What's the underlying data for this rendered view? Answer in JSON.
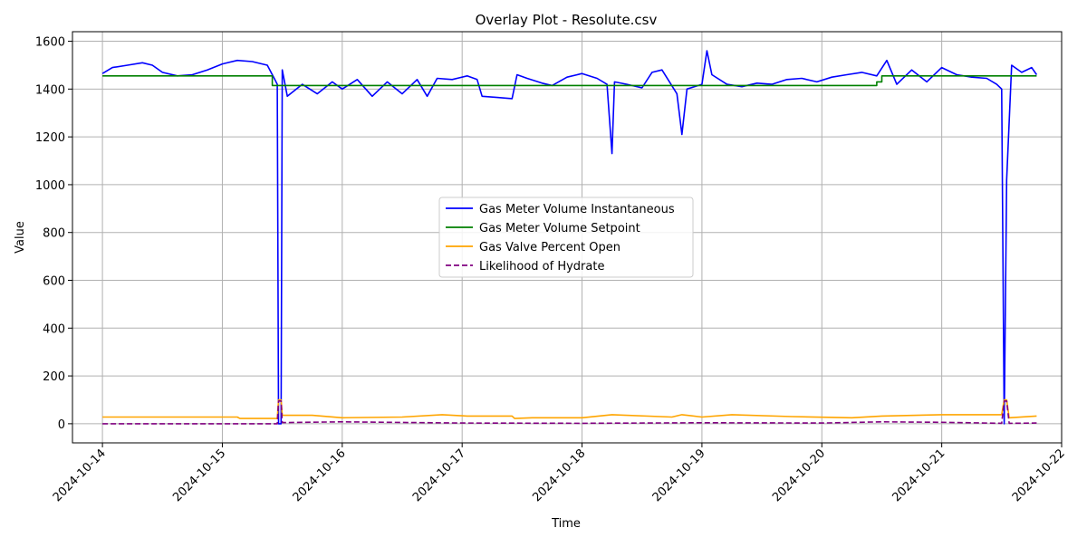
{
  "chart_data": {
    "type": "line",
    "title": "Overlay Plot - Resolute.csv",
    "xlabel": "Time",
    "ylabel": "Value",
    "xlim": [
      "2024-10-13T18:00",
      "2024-10-22T00:00"
    ],
    "ylim": [
      -80,
      1640
    ],
    "x_ticks": [
      "2024-10-14",
      "2024-10-15",
      "2024-10-16",
      "2024-10-17",
      "2024-10-18",
      "2024-10-19",
      "2024-10-20",
      "2024-10-21",
      "2024-10-22"
    ],
    "y_ticks": [
      0,
      200,
      400,
      600,
      800,
      1000,
      1200,
      1400,
      1600
    ],
    "grid": true,
    "legend_position": "center",
    "series": [
      {
        "name": "Gas Meter Volume Instantaneous",
        "color": "#0000ff",
        "dash": "solid",
        "points": [
          [
            "2024-10-14T00:00",
            1465
          ],
          [
            "2024-10-14T02:00",
            1490
          ],
          [
            "2024-10-14T05:00",
            1500
          ],
          [
            "2024-10-14T08:00",
            1510
          ],
          [
            "2024-10-14T10:00",
            1500
          ],
          [
            "2024-10-14T12:00",
            1470
          ],
          [
            "2024-10-14T15:00",
            1455
          ],
          [
            "2024-10-14T18:00",
            1460
          ],
          [
            "2024-10-14T21:00",
            1480
          ],
          [
            "2024-10-15T00:00",
            1505
          ],
          [
            "2024-10-15T03:00",
            1520
          ],
          [
            "2024-10-15T06:00",
            1515
          ],
          [
            "2024-10-15T09:00",
            1500
          ],
          [
            "2024-10-15T10:30",
            1440
          ],
          [
            "2024-10-15T11:00",
            1420
          ],
          [
            "2024-10-15T11:15",
            0
          ],
          [
            "2024-10-15T11:45",
            0
          ],
          [
            "2024-10-15T12:00",
            1480
          ],
          [
            "2024-10-15T13:00",
            1370
          ],
          [
            "2024-10-15T16:00",
            1420
          ],
          [
            "2024-10-15T19:00",
            1380
          ],
          [
            "2024-10-15T22:00",
            1430
          ],
          [
            "2024-10-16T00:00",
            1400
          ],
          [
            "2024-10-16T03:00",
            1440
          ],
          [
            "2024-10-16T06:00",
            1370
          ],
          [
            "2024-10-16T09:00",
            1430
          ],
          [
            "2024-10-16T12:00",
            1380
          ],
          [
            "2024-10-16T15:00",
            1440
          ],
          [
            "2024-10-16T17:00",
            1370
          ],
          [
            "2024-10-16T19:00",
            1445
          ],
          [
            "2024-10-16T22:00",
            1440
          ],
          [
            "2024-10-17T01:00",
            1455
          ],
          [
            "2024-10-17T03:00",
            1440
          ],
          [
            "2024-10-17T04:00",
            1370
          ],
          [
            "2024-10-17T07:00",
            1365
          ],
          [
            "2024-10-17T10:00",
            1360
          ],
          [
            "2024-10-17T11:00",
            1460
          ],
          [
            "2024-10-17T13:00",
            1445
          ],
          [
            "2024-10-17T16:00",
            1425
          ],
          [
            "2024-10-17T18:00",
            1415
          ],
          [
            "2024-10-17T21:00",
            1450
          ],
          [
            "2024-10-18T00:00",
            1465
          ],
          [
            "2024-10-18T03:00",
            1445
          ],
          [
            "2024-10-18T05:00",
            1420
          ],
          [
            "2024-10-18T06:00",
            1130
          ],
          [
            "2024-10-18T06:30",
            1430
          ],
          [
            "2024-10-18T09:00",
            1420
          ],
          [
            "2024-10-18T12:00",
            1405
          ],
          [
            "2024-10-18T14:00",
            1470
          ],
          [
            "2024-10-18T16:00",
            1480
          ],
          [
            "2024-10-18T19:00",
            1380
          ],
          [
            "2024-10-18T20:00",
            1210
          ],
          [
            "2024-10-18T21:00",
            1400
          ],
          [
            "2024-10-19T00:00",
            1420
          ],
          [
            "2024-10-19T01:00",
            1560
          ],
          [
            "2024-10-19T02:00",
            1460
          ],
          [
            "2024-10-19T05:00",
            1420
          ],
          [
            "2024-10-19T08:00",
            1410
          ],
          [
            "2024-10-19T11:00",
            1425
          ],
          [
            "2024-10-19T14:00",
            1420
          ],
          [
            "2024-10-19T17:00",
            1440
          ],
          [
            "2024-10-19T20:00",
            1445
          ],
          [
            "2024-10-19T23:00",
            1430
          ],
          [
            "2024-10-20T02:00",
            1450
          ],
          [
            "2024-10-20T05:00",
            1460
          ],
          [
            "2024-10-20T08:00",
            1470
          ],
          [
            "2024-10-20T11:00",
            1455
          ],
          [
            "2024-10-20T13:00",
            1520
          ],
          [
            "2024-10-20T15:00",
            1420
          ],
          [
            "2024-10-20T18:00",
            1480
          ],
          [
            "2024-10-20T21:00",
            1430
          ],
          [
            "2024-10-21T00:00",
            1490
          ],
          [
            "2024-10-21T03:00",
            1460
          ],
          [
            "2024-10-21T06:00",
            1450
          ],
          [
            "2024-10-21T09:00",
            1445
          ],
          [
            "2024-10-21T11:00",
            1420
          ],
          [
            "2024-10-21T12:00",
            1400
          ],
          [
            "2024-10-21T12:30",
            0
          ],
          [
            "2024-10-21T13:00",
            1020
          ],
          [
            "2024-10-21T14:00",
            1500
          ],
          [
            "2024-10-21T16:00",
            1470
          ],
          [
            "2024-10-21T18:00",
            1490
          ],
          [
            "2024-10-21T19:00",
            1460
          ]
        ]
      },
      {
        "name": "Gas Meter Volume Setpoint",
        "color": "#008000",
        "dash": "solid",
        "points": [
          [
            "2024-10-14T00:00",
            1455
          ],
          [
            "2024-10-15T10:00",
            1455
          ],
          [
            "2024-10-15T10:00",
            1415
          ],
          [
            "2024-10-20T11:00",
            1415
          ],
          [
            "2024-10-20T11:00",
            1430
          ],
          [
            "2024-10-20T12:00",
            1430
          ],
          [
            "2024-10-20T12:00",
            1455
          ],
          [
            "2024-10-21T19:00",
            1455
          ]
        ]
      },
      {
        "name": "Gas Valve Percent Open",
        "color": "#ffa500",
        "dash": "solid",
        "points": [
          [
            "2024-10-14T00:00",
            28
          ],
          [
            "2024-10-15T03:00",
            28
          ],
          [
            "2024-10-15T03:30",
            22
          ],
          [
            "2024-10-15T11:00",
            22
          ],
          [
            "2024-10-15T11:15",
            100
          ],
          [
            "2024-10-15T11:45",
            100
          ],
          [
            "2024-10-15T12:00",
            35
          ],
          [
            "2024-10-15T18:00",
            35
          ],
          [
            "2024-10-16T00:00",
            25
          ],
          [
            "2024-10-16T12:00",
            28
          ],
          [
            "2024-10-16T20:00",
            38
          ],
          [
            "2024-10-17T01:00",
            32
          ],
          [
            "2024-10-17T10:00",
            32
          ],
          [
            "2024-10-17T10:30",
            22
          ],
          [
            "2024-10-17T14:00",
            25
          ],
          [
            "2024-10-18T00:00",
            25
          ],
          [
            "2024-10-18T06:00",
            38
          ],
          [
            "2024-10-18T18:00",
            28
          ],
          [
            "2024-10-18T20:00",
            38
          ],
          [
            "2024-10-19T00:00",
            28
          ],
          [
            "2024-10-19T06:00",
            38
          ],
          [
            "2024-10-19T18:00",
            30
          ],
          [
            "2024-10-20T06:00",
            25
          ],
          [
            "2024-10-20T12:00",
            32
          ],
          [
            "2024-10-21T00:00",
            38
          ],
          [
            "2024-10-21T12:00",
            38
          ],
          [
            "2024-10-21T12:30",
            100
          ],
          [
            "2024-10-21T13:00",
            100
          ],
          [
            "2024-10-21T13:30",
            25
          ],
          [
            "2024-10-21T19:00",
            32
          ]
        ]
      },
      {
        "name": "Likelihood of Hydrate",
        "color": "#800080",
        "dash": "dashed",
        "points": [
          [
            "2024-10-14T00:00",
            0
          ],
          [
            "2024-10-15T11:00",
            0
          ],
          [
            "2024-10-15T11:15",
            95
          ],
          [
            "2024-10-15T11:45",
            95
          ],
          [
            "2024-10-15T12:00",
            5
          ],
          [
            "2024-10-16T00:00",
            8
          ],
          [
            "2024-10-17T00:00",
            3
          ],
          [
            "2024-10-18T00:00",
            2
          ],
          [
            "2024-10-19T00:00",
            4
          ],
          [
            "2024-10-20T00:00",
            3
          ],
          [
            "2024-10-20T12:00",
            8
          ],
          [
            "2024-10-21T00:00",
            6
          ],
          [
            "2024-10-21T12:00",
            2
          ],
          [
            "2024-10-21T12:30",
            95
          ],
          [
            "2024-10-21T13:00",
            95
          ],
          [
            "2024-10-21T13:30",
            2
          ],
          [
            "2024-10-21T19:00",
            3
          ]
        ]
      }
    ]
  }
}
